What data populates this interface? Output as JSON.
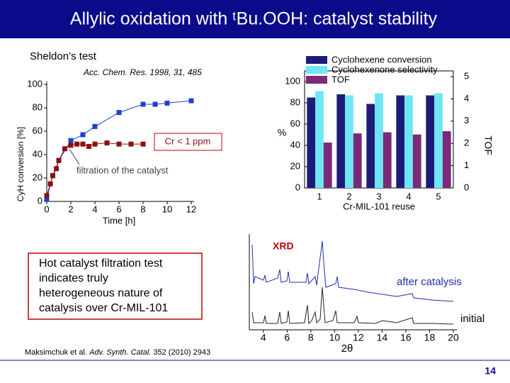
{
  "title": "Allylic oxidation with ᵗBu.OOH: catalyst stability",
  "subtitle": "Sheldon’s test",
  "reference": "Acc. Chem. Res. 1998, 31, 485",
  "note": [
    "Hot catalyst filtration test",
    "indicates truly",
    "heterogeneous nature of",
    "catalysis over Cr-MIL-101"
  ],
  "citation": {
    "authors": "Maksimchuk et al.",
    "journal": "Adv. Synth. Catal.",
    "details": "352 (2010) 2943"
  },
  "page_number": "14",
  "chart_data": [
    {
      "type": "scatter",
      "xlabel": "Time [h]",
      "ylabel": "CyH conversion [%]",
      "xlim": [
        0,
        12
      ],
      "ylim": [
        0,
        100
      ],
      "xticks": [
        0,
        2,
        4,
        6,
        8,
        10,
        12
      ],
      "yticks": [
        0,
        20,
        40,
        60,
        80,
        100
      ],
      "annotations": [
        "Cr < 1 ppm",
        "filtration of the catalyst"
      ],
      "series": [
        {
          "color": "#1f3fd0",
          "x": [
            0,
            0.5,
            1,
            2,
            3,
            4,
            6,
            8,
            9,
            10,
            12
          ],
          "values": [
            2,
            22,
            35,
            52,
            57,
            64,
            76,
            83,
            83,
            84,
            86
          ]
        },
        {
          "color": "#8b1010",
          "x": [
            0,
            0.3,
            0.5,
            0.8,
            1,
            1.5,
            2,
            2.5,
            3,
            3.5,
            4,
            5,
            6,
            7,
            8
          ],
          "values": [
            5,
            15,
            22,
            28,
            35,
            45,
            48,
            49,
            49,
            47,
            49,
            50,
            49,
            49,
            49
          ]
        }
      ]
    },
    {
      "type": "bar",
      "xlabel": "Cr-MIL-101 reuse",
      "ylabel": "%",
      "y2label": "TOF",
      "categories": [
        "1",
        "2",
        "3",
        "4",
        "5"
      ],
      "ylim": [
        0,
        100
      ],
      "yticks": [
        0,
        20,
        40,
        60,
        80,
        100
      ],
      "y2lim": [
        0,
        5
      ],
      "y2ticks": [
        0,
        1,
        2,
        3,
        4,
        5
      ],
      "series": [
        {
          "name": "Cyclohexene conversion",
          "color": "#1c1c78",
          "values": [
            85,
            88,
            79,
            87,
            87
          ]
        },
        {
          "name": "Cyclohexenone selectivity",
          "color": "#6fe6f4",
          "values": [
            91,
            87,
            89,
            87,
            89
          ]
        },
        {
          "name": "TOF",
          "color": "#7a2a78",
          "axis": "y2",
          "values": [
            2.04,
            2.45,
            2.5,
            2.4,
            2.55
          ]
        }
      ]
    },
    {
      "type": "line",
      "title": "XRD",
      "xlabel": "2θ",
      "xlim": [
        3,
        20
      ],
      "xticks": [
        4,
        6,
        8,
        10,
        12,
        14,
        16,
        18,
        20
      ],
      "annotations": [
        "after catalysis",
        "initial"
      ]
    }
  ]
}
